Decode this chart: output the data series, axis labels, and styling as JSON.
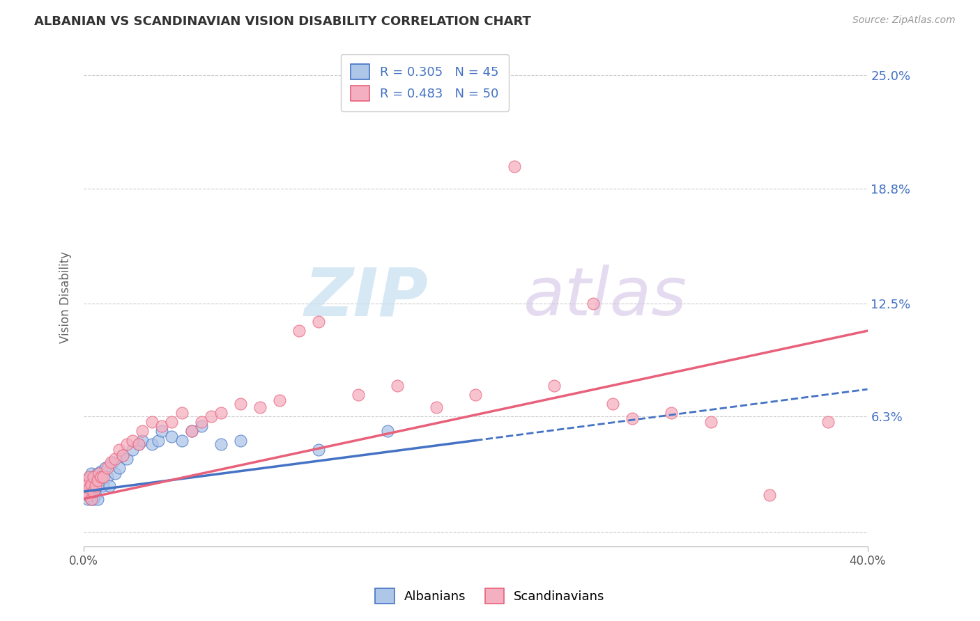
{
  "title": "ALBANIAN VS SCANDINAVIAN VISION DISABILITY CORRELATION CHART",
  "source": "Source: ZipAtlas.com",
  "ylabel": "Vision Disability",
  "xlim": [
    0.0,
    0.4
  ],
  "ylim": [
    -0.008,
    0.265
  ],
  "yticks": [
    0.0,
    0.063,
    0.125,
    0.188,
    0.25
  ],
  "ytick_labels": [
    "",
    "6.3%",
    "12.5%",
    "18.8%",
    "25.0%"
  ],
  "albanian_color": "#aec6e8",
  "scandinavian_color": "#f4afc0",
  "albanian_line_color": "#4472c4",
  "scandinavian_line_color": "#e8607a",
  "R_albanian": 0.305,
  "N_albanian": 45,
  "R_scandinavian": 0.483,
  "N_scandinavian": 50,
  "albanian_label": "Albanians",
  "scandinavian_label": "Scandinavians",
  "alb_line_x0": 0.0,
  "alb_line_y0": 0.022,
  "alb_line_x1": 0.2,
  "alb_line_y1": 0.05,
  "sca_line_x0": 0.0,
  "sca_line_y0": 0.018,
  "sca_line_x1": 0.4,
  "sca_line_y1": 0.11,
  "albanian_x": [
    0.001,
    0.001,
    0.002,
    0.002,
    0.002,
    0.003,
    0.003,
    0.003,
    0.004,
    0.004,
    0.004,
    0.005,
    0.005,
    0.005,
    0.006,
    0.006,
    0.006,
    0.007,
    0.007,
    0.007,
    0.008,
    0.009,
    0.01,
    0.011,
    0.012,
    0.013,
    0.015,
    0.016,
    0.018,
    0.02,
    0.022,
    0.025,
    0.028,
    0.03,
    0.035,
    0.038,
    0.04,
    0.045,
    0.05,
    0.055,
    0.06,
    0.07,
    0.08,
    0.12,
    0.155
  ],
  "albanian_y": [
    0.02,
    0.025,
    0.022,
    0.028,
    0.018,
    0.024,
    0.03,
    0.02,
    0.026,
    0.032,
    0.018,
    0.022,
    0.028,
    0.018,
    0.024,
    0.03,
    0.02,
    0.026,
    0.032,
    0.018,
    0.03,
    0.033,
    0.025,
    0.035,
    0.03,
    0.025,
    0.038,
    0.032,
    0.035,
    0.042,
    0.04,
    0.045,
    0.048,
    0.05,
    0.048,
    0.05,
    0.055,
    0.052,
    0.05,
    0.055,
    0.058,
    0.048,
    0.05,
    0.045,
    0.055
  ],
  "scandinavian_x": [
    0.001,
    0.001,
    0.002,
    0.002,
    0.003,
    0.003,
    0.004,
    0.004,
    0.005,
    0.005,
    0.006,
    0.007,
    0.008,
    0.009,
    0.01,
    0.012,
    0.014,
    0.016,
    0.018,
    0.02,
    0.022,
    0.025,
    0.028,
    0.03,
    0.035,
    0.04,
    0.045,
    0.05,
    0.055,
    0.06,
    0.065,
    0.07,
    0.08,
    0.09,
    0.1,
    0.11,
    0.12,
    0.14,
    0.16,
    0.18,
    0.2,
    0.22,
    0.24,
    0.26,
    0.27,
    0.28,
    0.3,
    0.32,
    0.35,
    0.38
  ],
  "scandinavian_y": [
    0.022,
    0.028,
    0.02,
    0.026,
    0.024,
    0.03,
    0.018,
    0.026,
    0.022,
    0.03,
    0.025,
    0.028,
    0.032,
    0.03,
    0.03,
    0.035,
    0.038,
    0.04,
    0.045,
    0.042,
    0.048,
    0.05,
    0.048,
    0.055,
    0.06,
    0.058,
    0.06,
    0.065,
    0.055,
    0.06,
    0.063,
    0.065,
    0.07,
    0.068,
    0.072,
    0.11,
    0.115,
    0.075,
    0.08,
    0.068,
    0.075,
    0.2,
    0.08,
    0.125,
    0.07,
    0.062,
    0.065,
    0.06,
    0.02,
    0.06
  ]
}
